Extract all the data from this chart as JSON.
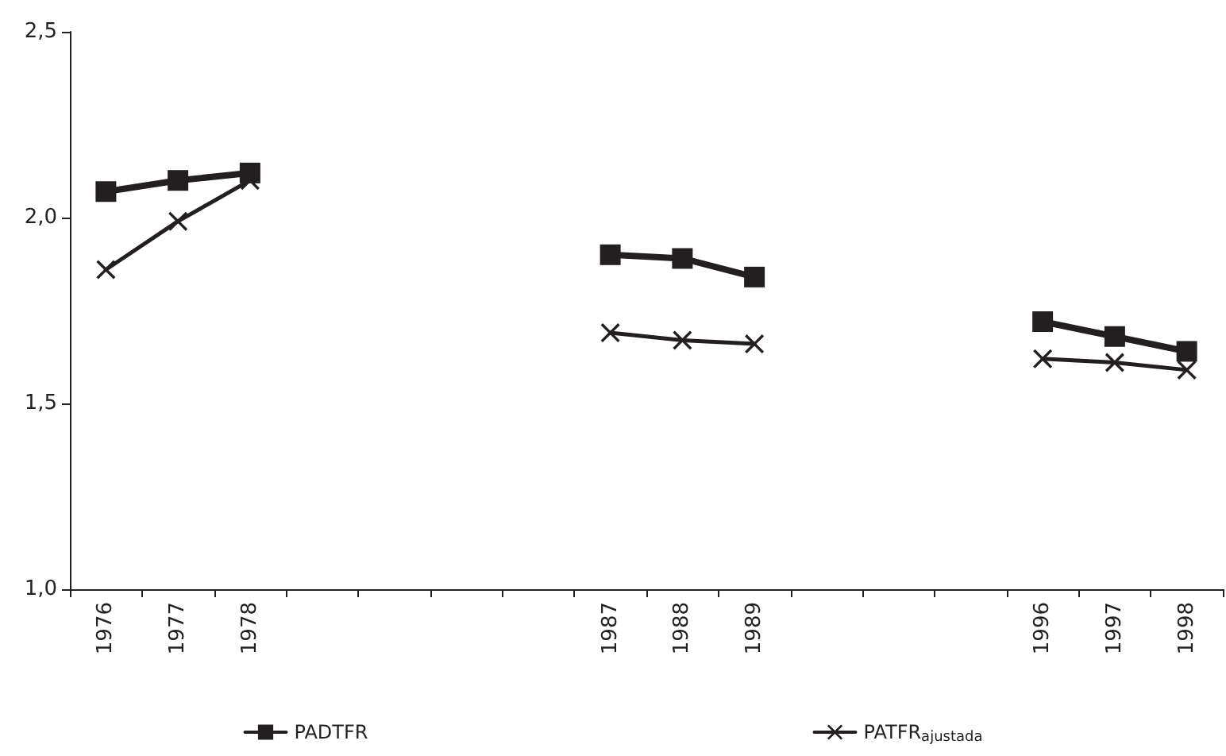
{
  "chart_data": {
    "type": "line",
    "categories": [
      "1976",
      "1977",
      "1978",
      null,
      null,
      null,
      null,
      "1987",
      "1988",
      "1989",
      null,
      null,
      null,
      "1996",
      "1997",
      "1998"
    ],
    "series": [
      {
        "name": "PADTFR",
        "color": "#231f20",
        "marker": "square",
        "values": [
          2.07,
          2.1,
          2.12,
          null,
          null,
          null,
          null,
          1.9,
          1.89,
          1.84,
          null,
          null,
          null,
          1.72,
          1.68,
          1.64
        ]
      },
      {
        "name": "PATFR$_{ajustada}$",
        "color": "#231f20",
        "marker": "cross",
        "values": [
          1.86,
          1.99,
          2.1,
          null,
          null,
          null,
          null,
          1.69,
          1.67,
          1.66,
          null,
          null,
          null,
          1.62,
          1.61,
          1.59
        ]
      }
    ],
    "ylim": [
      1,
      2.5
    ],
    "yticks": [
      {
        "value": 1,
        "label": "1,0"
      },
      {
        "value": 1.5,
        "label": "1,5"
      },
      {
        "value": 2,
        "label": "2,0"
      },
      {
        "value": 2.5,
        "label": "2,5"
      }
    ],
    "grid": false,
    "legend": "bottom"
  }
}
